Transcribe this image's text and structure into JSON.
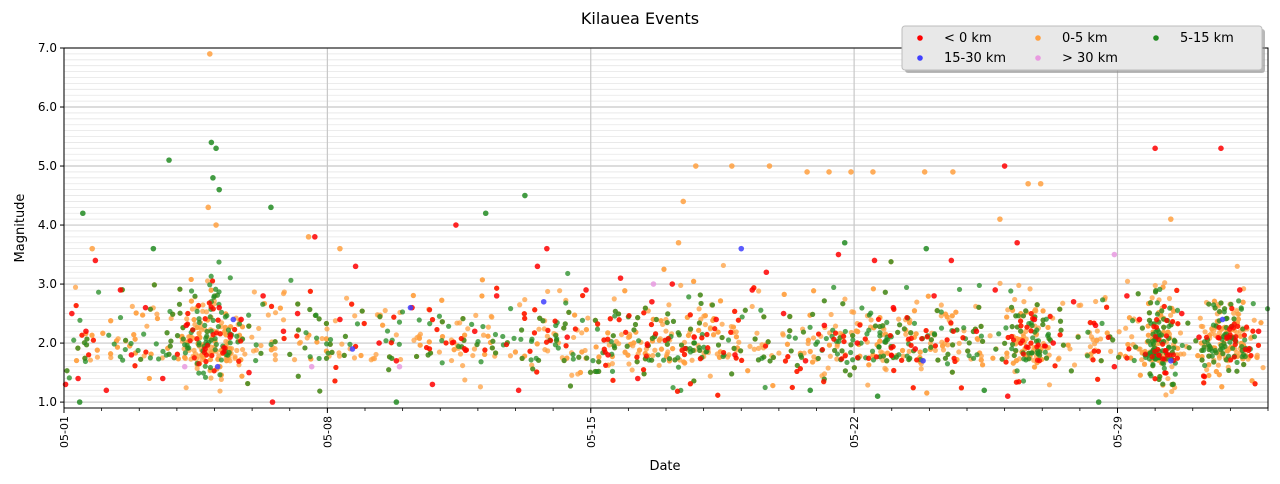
{
  "chart_data": {
    "type": "scatter",
    "title": "Kilauea Events",
    "xlabel": "Date",
    "ylabel": "Magnitude",
    "x_range": [
      "2018-05-01",
      "2018-06-02"
    ],
    "ylim": [
      0.9,
      7.0
    ],
    "x_ticks": [
      {
        "date": "2018-05-01",
        "label": "05-01"
      },
      {
        "date": "2018-05-08",
        "label": "05-08"
      },
      {
        "date": "2018-05-15",
        "label": "05-15"
      },
      {
        "date": "2018-05-22",
        "label": "05-22"
      },
      {
        "date": "2018-05-29",
        "label": "05-29"
      }
    ],
    "y_ticks": [
      1.0,
      2.0,
      3.0,
      4.0,
      5.0,
      6.0,
      7.0
    ],
    "y_tick_labels": [
      "1.0",
      "2.0",
      "3.0",
      "4.0",
      "5.0",
      "6.0",
      "7.0"
    ],
    "grid": true,
    "minor_grid": true,
    "legend": {
      "placement": "top-right",
      "columns": 3,
      "entries": [
        "< 0 km",
        "0-5 km",
        "5-15 km",
        "15-30 km",
        "> 30 km"
      ]
    },
    "series": [
      {
        "name": "< 0 km",
        "color": "#ff0000",
        "points": [
          [
            "2018-05-01 01:00",
            1.3
          ],
          [
            "2018-05-01 05:00",
            2.5
          ],
          [
            "2018-05-01 09:00",
            1.4
          ],
          [
            "2018-05-01 14:00",
            2.2
          ],
          [
            "2018-05-01 20:00",
            3.4
          ],
          [
            "2018-05-02 03:00",
            1.2
          ],
          [
            "2018-05-02 12:00",
            2.9
          ],
          [
            "2018-05-02 19:00",
            1.8
          ],
          [
            "2018-05-03 04:00",
            2.6
          ],
          [
            "2018-05-03 15:00",
            1.4
          ],
          [
            "2018-05-04 06:00",
            2.3
          ],
          [
            "2018-05-04 18:00",
            1.9
          ],
          [
            "2018-05-05 03:00",
            2.6
          ],
          [
            "2018-05-05 10:00",
            2.1
          ],
          [
            "2018-05-05 17:00",
            2.4
          ],
          [
            "2018-05-05 22:00",
            1.5
          ],
          [
            "2018-05-06 07:00",
            2.8
          ],
          [
            "2018-05-06 13:00",
            1.0
          ],
          [
            "2018-05-06 20:00",
            2.2
          ],
          [
            "2018-05-07 05:00",
            2.5
          ],
          [
            "2018-05-07 16:00",
            3.8
          ],
          [
            "2018-05-08 08:00",
            2.4
          ],
          [
            "2018-05-08 18:00",
            3.3
          ],
          [
            "2018-05-09 09:00",
            2.0
          ],
          [
            "2018-05-09 20:00",
            1.7
          ],
          [
            "2018-05-10 06:00",
            2.6
          ],
          [
            "2018-05-10 19:00",
            1.3
          ],
          [
            "2018-05-11 10:00",
            4.0
          ],
          [
            "2018-05-11 22:00",
            2.2
          ],
          [
            "2018-05-12 12:00",
            2.8
          ],
          [
            "2018-05-13 02:00",
            1.2
          ],
          [
            "2018-05-13 14:00",
            3.3
          ],
          [
            "2018-05-13 20:00",
            3.6
          ],
          [
            "2018-05-14 09:00",
            2.1
          ],
          [
            "2018-05-14 21:00",
            2.9
          ],
          [
            "2018-05-15 11:00",
            1.8
          ],
          [
            "2018-05-15 19:00",
            3.1
          ],
          [
            "2018-05-16 06:00",
            1.4
          ],
          [
            "2018-05-16 15:00",
            2.7
          ],
          [
            "2018-05-17 04:00",
            3.0
          ],
          [
            "2018-05-17 18:00",
            2.1
          ],
          [
            "2018-05-18 08:00",
            2.4
          ],
          [
            "2018-05-18 20:00",
            1.8
          ],
          [
            "2018-05-19 07:00",
            2.9
          ],
          [
            "2018-05-19 16:00",
            3.2
          ],
          [
            "2018-05-20 03:00",
            2.5
          ],
          [
            "2018-05-20 17:00",
            1.7
          ],
          [
            "2018-05-21 05:00",
            2.3
          ],
          [
            "2018-05-21 14:00",
            3.5
          ],
          [
            "2018-05-22 02:00",
            2.0
          ],
          [
            "2018-05-22 13:00",
            3.4
          ],
          [
            "2018-05-23 01:00",
            2.6
          ],
          [
            "2018-05-23 15:00",
            1.9
          ],
          [
            "2018-05-24 03:00",
            2.8
          ],
          [
            "2018-05-24 14:00",
            3.4
          ],
          [
            "2018-05-25 06:00",
            2.2
          ],
          [
            "2018-05-25 18:00",
            2.9
          ],
          [
            "2018-05-26 00:00",
            5.0
          ],
          [
            "2018-05-26 02:00",
            1.1
          ],
          [
            "2018-05-26 08:00",
            3.7
          ],
          [
            "2018-05-26 19:00",
            2.4
          ],
          [
            "2018-05-27 07:00",
            2.0
          ],
          [
            "2018-05-27 20:00",
            2.7
          ],
          [
            "2018-05-28 10:00",
            2.3
          ],
          [
            "2018-05-28 22:00",
            1.6
          ],
          [
            "2018-05-29 06:00",
            2.8
          ],
          [
            "2018-05-29 14:00",
            2.4
          ],
          [
            "2018-05-30 00:00",
            5.3
          ],
          [
            "2018-05-30 08:00",
            1.8
          ],
          [
            "2018-05-30 17:00",
            2.5
          ],
          [
            "2018-05-31 04:00",
            2.1
          ],
          [
            "2018-05-31 18:00",
            5.3
          ],
          [
            "2018-06-01 06:00",
            2.9
          ],
          [
            "2018-06-01 18:00",
            2.2
          ]
        ]
      },
      {
        "name": "0-5 km",
        "color": "#ffa040",
        "points": [
          [
            "2018-05-04 21:00",
            6.9
          ],
          [
            "2018-05-04 20:00",
            4.3
          ],
          [
            "2018-05-05 01:00",
            4.0
          ],
          [
            "2018-05-07 12:00",
            3.8
          ],
          [
            "2018-05-17 19:00",
            5.0
          ],
          [
            "2018-05-18 18:00",
            5.0
          ],
          [
            "2018-05-19 18:00",
            5.0
          ],
          [
            "2018-05-20 18:00",
            4.9
          ],
          [
            "2018-05-21 08:00",
            4.9
          ],
          [
            "2018-05-21 22:00",
            4.9
          ],
          [
            "2018-05-22 12:00",
            4.9
          ],
          [
            "2018-05-23 21:00",
            4.9
          ],
          [
            "2018-05-24 15:00",
            4.9
          ],
          [
            "2018-05-26 15:00",
            4.7
          ],
          [
            "2018-05-26 23:00",
            4.7
          ],
          [
            "2018-05-17 11:00",
            4.4
          ],
          [
            "2018-05-30 10:00",
            4.1
          ],
          [
            "2018-05-25 21:00",
            4.1
          ],
          [
            "2018-05-01 18:00",
            3.6
          ],
          [
            "2018-05-08 08:00",
            3.6
          ],
          [
            "2018-05-17 08:00",
            3.7
          ]
        ]
      },
      {
        "name": "5-15 km",
        "color": "#228b22",
        "points": [
          [
            "2018-05-01 12:00",
            4.2
          ],
          [
            "2018-05-03 19:00",
            5.1
          ],
          [
            "2018-05-04 22:00",
            5.4
          ],
          [
            "2018-05-05 01:00",
            5.3
          ],
          [
            "2018-05-05 03:00",
            4.6
          ],
          [
            "2018-05-04 23:00",
            4.8
          ],
          [
            "2018-05-06 12:00",
            4.3
          ],
          [
            "2018-05-12 05:00",
            4.2
          ],
          [
            "2018-05-13 06:00",
            4.5
          ],
          [
            "2018-05-21 18:00",
            3.7
          ],
          [
            "2018-05-23 22:00",
            3.6
          ],
          [
            "2018-05-20 20:00",
            1.2
          ],
          [
            "2018-05-22 15:00",
            1.1
          ],
          [
            "2018-05-09 20:00",
            1.0
          ],
          [
            "2018-05-01 10:00",
            1.0
          ],
          [
            "2018-05-28 12:00",
            1.0
          ],
          [
            "2018-05-25 11:00",
            1.2
          ],
          [
            "2018-05-03 09:00",
            3.6
          ]
        ]
      },
      {
        "name": "15-30 km",
        "color": "#4040ff",
        "points": [
          [
            "2018-05-05 02:00",
            1.6
          ],
          [
            "2018-05-05 12:00",
            2.4
          ],
          [
            "2018-05-10 05:00",
            2.6
          ],
          [
            "2018-05-13 18:00",
            2.7
          ],
          [
            "2018-05-19 00:00",
            3.6
          ],
          [
            "2018-05-23 20:00",
            1.7
          ],
          [
            "2018-05-30 10:00",
            1.7
          ],
          [
            "2018-05-31 19:00",
            2.4
          ],
          [
            "2018-05-08 16:00",
            1.9
          ]
        ]
      },
      {
        "name": "> 30 km",
        "color": "#e89ae0",
        "points": [
          [
            "2018-05-28 22:00",
            3.5
          ],
          [
            "2018-05-07 14:00",
            1.6
          ],
          [
            "2018-05-16 16:00",
            3.0
          ],
          [
            "2018-05-09 22:00",
            1.6
          ],
          [
            "2018-05-04 05:00",
            1.6
          ]
        ]
      }
    ]
  }
}
